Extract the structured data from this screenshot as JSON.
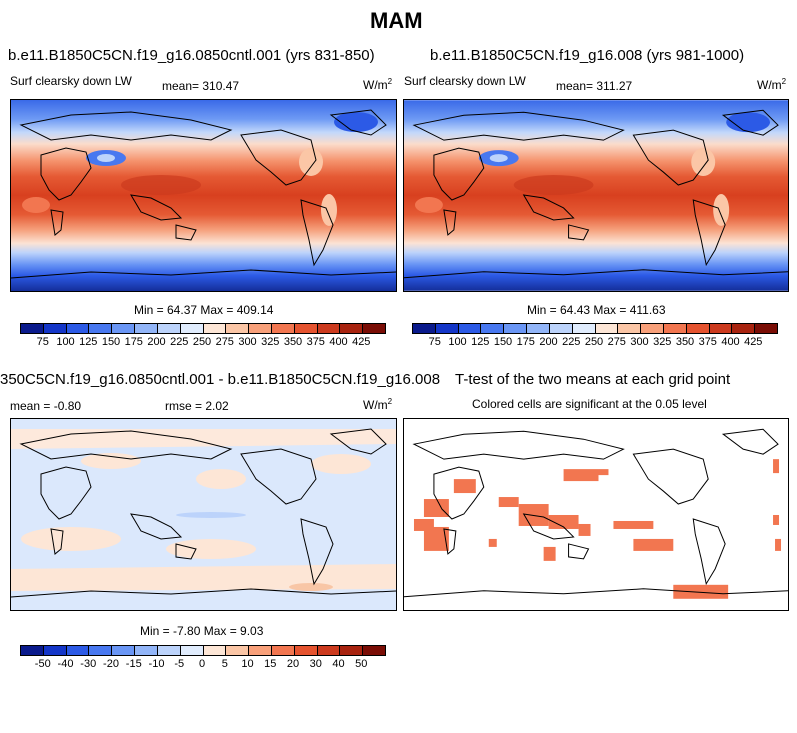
{
  "figure": {
    "title": "MAM"
  },
  "panels": {
    "top_left": {
      "title": "b.e11.B1850C5CN.f19_g16.0850cntl.001 (yrs 831-850)",
      "variable": "Surf clearsky down LW",
      "mean": "mean= 310.47",
      "units": "W/m",
      "units_exp": "2",
      "minmax": "Min =  64.37 Max = 409.14"
    },
    "top_right": {
      "title": "b.e11.B1850C5CN.f19_g16.008 (yrs 981-1000)",
      "variable": "Surf clearsky down LW",
      "mean": "mean= 311.27",
      "units": "W/m",
      "units_exp": "2",
      "minmax": "Min =  64.43 Max = 411.63"
    },
    "bottom_left": {
      "title": "350C5CN.f19_g16.0850cntl.001 - b.e11.B1850C5CN.f19_g16.008",
      "mean": "mean =  -0.80",
      "rmse": "rmse =   2.02",
      "units": "W/m",
      "units_exp": "2",
      "minmax": "Min =  -7.80 Max =   9.03"
    },
    "bottom_right": {
      "title": "T-test of the two means at each grid point",
      "subtitle": "Colored cells are significant at the 0.05 level"
    }
  },
  "colorbars": {
    "absolute": {
      "colors": [
        "#0a1a8c",
        "#1436c8",
        "#2c5ae6",
        "#4878f0",
        "#6a96f5",
        "#92b5f8",
        "#bcd3fb",
        "#e0ecfd",
        "#fde6d6",
        "#fbc6a6",
        "#f8a07a",
        "#f27650",
        "#e5532f",
        "#cc3a1e",
        "#a8230f",
        "#7a0d05"
      ],
      "labels": [
        "75",
        "100",
        "125",
        "150",
        "175",
        "200",
        "225",
        "250",
        "275",
        "300",
        "325",
        "350",
        "375",
        "400",
        "425"
      ]
    },
    "difference": {
      "colors": [
        "#0a1a8c",
        "#1436c8",
        "#2c5ae6",
        "#4878f0",
        "#6a96f5",
        "#92b5f8",
        "#bcd3fb",
        "#e0ecfd",
        "#fde6d6",
        "#fbc6a6",
        "#f8a07a",
        "#f27650",
        "#e5532f",
        "#cc3a1e",
        "#a8230f",
        "#7a0d05"
      ],
      "labels": [
        "-50",
        "-40",
        "-30",
        "-20",
        "-15",
        "-10",
        "-5",
        "0",
        "5",
        "10",
        "15",
        "20",
        "30",
        "40",
        "50"
      ]
    }
  }
}
